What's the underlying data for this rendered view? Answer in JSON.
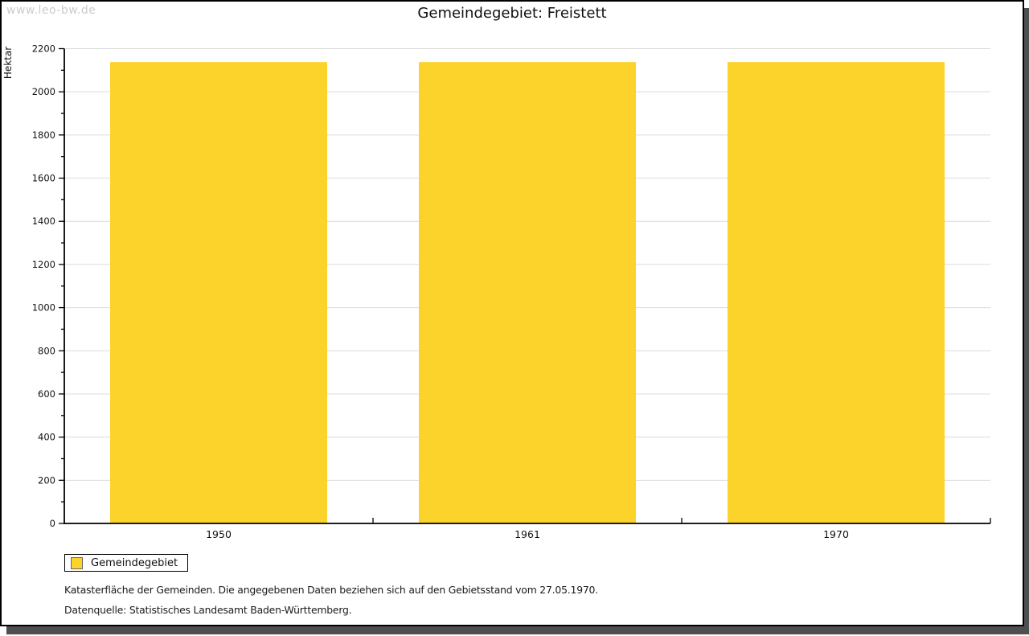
{
  "watermark": "www.leo-bw.de",
  "header": {
    "title": "Gemeindegebiet: Freistett"
  },
  "chart_data": {
    "type": "bar",
    "title": "Gemeindegebiet: Freistett",
    "categories": [
      "1950",
      "1961",
      "1970"
    ],
    "series": [
      {
        "name": "Gemeindegebiet",
        "values": [
          2138,
          2138,
          2138
        ]
      }
    ],
    "xlabel": "",
    "ylabel": "Hektar",
    "ylim": [
      0,
      2200
    ],
    "yticks": [
      0,
      200,
      400,
      600,
      800,
      1000,
      1200,
      1400,
      1600,
      1800,
      2000,
      2200
    ],
    "ytick_minor": 100,
    "grid": true,
    "legend_position": "bottom-left",
    "bar_color": "#fcd32b",
    "grid_color": "#dcdcdc",
    "axis_color": "#000000"
  },
  "legend": {
    "items": [
      {
        "label": "Gemeindegebiet",
        "color": "#fcd32b"
      }
    ]
  },
  "footnotes": {
    "line1": "Katasterfläche der Gemeinden. Die angegebenen Daten beziehen sich auf den Gebietsstand vom 27.05.1970.",
    "line2": "Datenquelle: Statistisches Landesamt Baden-Württemberg."
  }
}
